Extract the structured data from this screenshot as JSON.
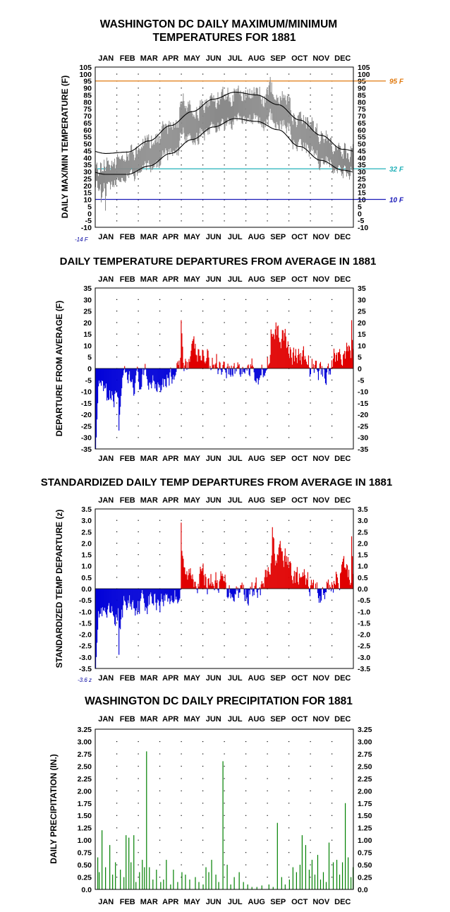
{
  "colors": {
    "max_temp": "#8a8a8a",
    "normal_line": "#000000",
    "ref_95": "#e07a10",
    "ref_32": "#22b0b8",
    "ref_10": "#1a1ab8",
    "positive": "#e00000",
    "negative": "#0000d8",
    "precip": "#008000",
    "grid_dots": "#000000",
    "extreme_label": "#0000a0"
  },
  "months": [
    "JAN",
    "FEB",
    "MAR",
    "APR",
    "MAY",
    "JUN",
    "JUL",
    "AUG",
    "SEP",
    "OCT",
    "NOV",
    "DEC"
  ],
  "chart_data": [
    {
      "id": "temps",
      "type": "line",
      "title_line1": "WASHINGTON DC DAILY MAXIMUM/MINIMUM",
      "title_line2": "TEMPERATURES FOR 1881",
      "ylabel": "DAILY MAX/MIN TEMPERATURE (F)",
      "ylim": [
        -10,
        105
      ],
      "yticks": [
        105,
        100,
        95,
        90,
        85,
        80,
        75,
        70,
        65,
        60,
        55,
        50,
        45,
        40,
        35,
        30,
        25,
        20,
        15,
        10,
        5,
        0,
        -5,
        -10
      ],
      "reference_lines": [
        {
          "value": 95,
          "label": "95 F",
          "color": "#e07a10"
        },
        {
          "value": 32,
          "label": "32 F",
          "color": "#22b0b8"
        },
        {
          "value": 10,
          "label": "10 F",
          "color": "#1a1ab8"
        }
      ],
      "extreme_label": "-14 F",
      "series": [
        {
          "kind": "normal_max",
          "monthly_values": [
            43,
            44,
            52,
            63,
            73,
            82,
            87,
            85,
            78,
            67,
            56,
            46
          ]
        },
        {
          "kind": "normal_min",
          "monthly_values": [
            28,
            28,
            34,
            43,
            53,
            62,
            68,
            66,
            60,
            48,
            38,
            31
          ]
        },
        {
          "kind": "daily_range_monthly_max_ranges",
          "months": [
            "JAN",
            "FEB",
            "MAR",
            "APR",
            "MAY",
            "JUN",
            "JUL",
            "AUG",
            "SEP",
            "OCT",
            "NOV",
            "DEC"
          ],
          "high": [
            50,
            60,
            56,
            65,
            88,
            92,
            96,
            96,
            102,
            86,
            70,
            60
          ],
          "low": [
            -14,
            5,
            20,
            25,
            40,
            55,
            60,
            65,
            55,
            40,
            25,
            20
          ]
        }
      ]
    },
    {
      "id": "departures",
      "type": "bar",
      "title": "DAILY TEMPERATURE DEPARTURES FROM AVERAGE IN 1881",
      "ylabel": "DEPARTURE FROM AVERAGE (F)",
      "ylim": [
        -35,
        35
      ],
      "yticks": [
        35,
        30,
        25,
        20,
        15,
        10,
        5,
        0,
        -5,
        -10,
        -15,
        -20,
        -25,
        -30,
        -35
      ],
      "monthly_mean_departure": [
        -9,
        -4,
        -3,
        -2,
        4,
        2,
        0,
        -1,
        9,
        2,
        -1,
        5
      ],
      "annotated_extremes": [
        {
          "label": "Jan 1",
          "value": -35
        },
        {
          "label": "Feb 1",
          "value": -27
        },
        {
          "label": "May 2",
          "value": 21
        },
        {
          "label": "Dec 28",
          "value": 21
        }
      ]
    },
    {
      "id": "standardized",
      "type": "bar",
      "title": "STANDARDIZED DAILY TEMP DEPARTURES FROM AVERAGE IN 1881",
      "ylabel": "STANDARDIZED TEMP DEPARTURE (z)",
      "ylim": [
        -3.5,
        3.5
      ],
      "yticks": [
        "3.5",
        "3.0",
        "2.5",
        "2.0",
        "1.5",
        "1.0",
        "0.5",
        "0.0",
        "-0.5",
        "-1.0",
        "-1.5",
        "-2.0",
        "-2.5",
        "-3.0",
        "-3.5"
      ],
      "extreme_label": "-3.6 z",
      "annotated_extremes": [
        {
          "label": "Jan 1",
          "value": -3.6
        },
        {
          "label": "May 2",
          "value": 2.9
        },
        {
          "label": "Sep 5",
          "value": 2.7
        }
      ]
    },
    {
      "id": "precip",
      "type": "bar",
      "title": "WASHINGTON DC DAILY PRECIPITATION FOR 1881",
      "ylabel": "DAILY PRECIPITATION (IN.)",
      "ylim": [
        0,
        3.25
      ],
      "yticks": [
        "3.25",
        "3.00",
        "2.75",
        "2.50",
        "2.25",
        "2.00",
        "1.75",
        "1.50",
        "1.25",
        "1.00",
        "0.75",
        "0.50",
        "0.25",
        "0.0"
      ],
      "events": [
        {
          "day": 3,
          "value": 0.65
        },
        {
          "day": 5,
          "value": 0.35
        },
        {
          "day": 9,
          "value": 1.2
        },
        {
          "day": 14,
          "value": 0.45
        },
        {
          "day": 20,
          "value": 0.9
        },
        {
          "day": 24,
          "value": 0.3
        },
        {
          "day": 28,
          "value": 0.55
        },
        {
          "day": 35,
          "value": 0.4
        },
        {
          "day": 40,
          "value": 0.25
        },
        {
          "day": 43,
          "value": 1.1
        },
        {
          "day": 47,
          "value": 1.05
        },
        {
          "day": 50,
          "value": 0.55
        },
        {
          "day": 54,
          "value": 1.1
        },
        {
          "day": 57,
          "value": 0.15
        },
        {
          "day": 62,
          "value": 0.35
        },
        {
          "day": 66,
          "value": 0.6
        },
        {
          "day": 69,
          "value": 0.45
        },
        {
          "day": 72,
          "value": 2.8
        },
        {
          "day": 76,
          "value": 0.45
        },
        {
          "day": 81,
          "value": 0.2
        },
        {
          "day": 86,
          "value": 0.4
        },
        {
          "day": 92,
          "value": 0.15
        },
        {
          "day": 96,
          "value": 0.2
        },
        {
          "day": 100,
          "value": 0.6
        },
        {
          "day": 106,
          "value": 0.1
        },
        {
          "day": 110,
          "value": 0.4
        },
        {
          "day": 116,
          "value": 0.15
        },
        {
          "day": 122,
          "value": 0.35
        },
        {
          "day": 127,
          "value": 0.3
        },
        {
          "day": 133,
          "value": 0.2
        },
        {
          "day": 141,
          "value": 0.25
        },
        {
          "day": 146,
          "value": 0.15
        },
        {
          "day": 152,
          "value": 0.1
        },
        {
          "day": 156,
          "value": 0.45
        },
        {
          "day": 160,
          "value": 0.35
        },
        {
          "day": 164,
          "value": 0.6
        },
        {
          "day": 170,
          "value": 0.3
        },
        {
          "day": 174,
          "value": 0.15
        },
        {
          "day": 180,
          "value": 2.6
        },
        {
          "day": 186,
          "value": 0.5
        },
        {
          "day": 191,
          "value": 0.1
        },
        {
          "day": 196,
          "value": 0.25
        },
        {
          "day": 203,
          "value": 0.35
        },
        {
          "day": 209,
          "value": 0.15
        },
        {
          "day": 215,
          "value": 0.1
        },
        {
          "day": 221,
          "value": 0.05
        },
        {
          "day": 228,
          "value": 0.05
        },
        {
          "day": 235,
          "value": 0.08
        },
        {
          "day": 245,
          "value": 0.1
        },
        {
          "day": 251,
          "value": 0.05
        },
        {
          "day": 257,
          "value": 1.35
        },
        {
          "day": 263,
          "value": 0.25
        },
        {
          "day": 268,
          "value": 0.1
        },
        {
          "day": 274,
          "value": 0.2
        },
        {
          "day": 279,
          "value": 0.45
        },
        {
          "day": 284,
          "value": 0.35
        },
        {
          "day": 289,
          "value": 0.5
        },
        {
          "day": 292,
          "value": 1.1
        },
        {
          "day": 297,
          "value": 0.9
        },
        {
          "day": 302,
          "value": 0.4
        },
        {
          "day": 306,
          "value": 0.6
        },
        {
          "day": 310,
          "value": 0.3
        },
        {
          "day": 314,
          "value": 0.7
        },
        {
          "day": 318,
          "value": 0.2
        },
        {
          "day": 322,
          "value": 0.35
        },
        {
          "day": 326,
          "value": 0.15
        },
        {
          "day": 330,
          "value": 0.95
        },
        {
          "day": 336,
          "value": 0.55
        },
        {
          "day": 341,
          "value": 0.6
        },
        {
          "day": 345,
          "value": 0.3
        },
        {
          "day": 349,
          "value": 0.55
        },
        {
          "day": 353,
          "value": 1.75
        },
        {
          "day": 357,
          "value": 0.65
        },
        {
          "day": 361,
          "value": 0.25
        },
        {
          "day": 364,
          "value": 0.45
        }
      ]
    }
  ]
}
